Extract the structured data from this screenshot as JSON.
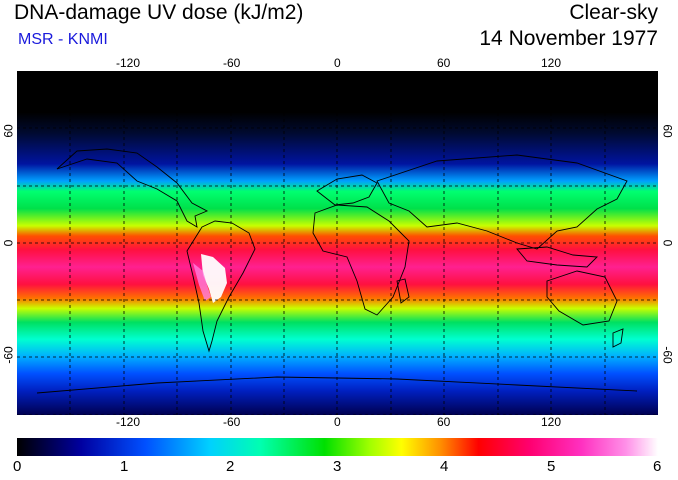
{
  "header": {
    "title": "DNA-damage UV dose (kJ/m2)",
    "source": "MSR - KNMI",
    "condition": "Clear-sky",
    "date": "14 November 1977"
  },
  "map": {
    "longitude_ticks": [
      "-120",
      "-60",
      "0",
      "60",
      "120"
    ],
    "latitude_ticks_left": [
      "60",
      "0",
      "-60"
    ],
    "latitude_ticks_right": [
      "60",
      "0",
      "-60"
    ],
    "grid": "dashed, every 30 degrees",
    "projection": "cylindrical equidistant"
  },
  "colorbar": {
    "labels": [
      "0",
      "1",
      "2",
      "3",
      "4",
      "5",
      "6"
    ],
    "min": 0,
    "max": 6
  }
}
